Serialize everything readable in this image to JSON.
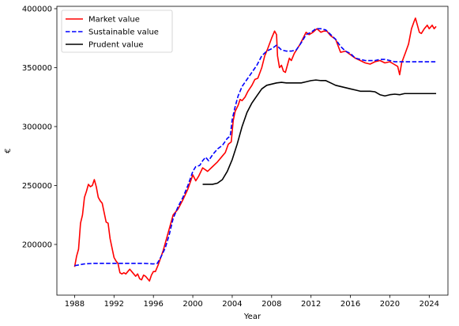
{
  "chart_data": {
    "type": "line",
    "title": "",
    "xlabel": "Year",
    "ylabel": "€",
    "xlim": [
      1986.2,
      2025.9
    ],
    "ylim": [
      157000,
      402000
    ],
    "xticks": [
      1988,
      1992,
      1996,
      2000,
      2004,
      2008,
      2012,
      2016,
      2020,
      2024
    ],
    "yticks": [
      200000,
      250000,
      300000,
      350000,
      400000
    ],
    "grid": false,
    "legend_position": "top-left",
    "series": [
      {
        "name": "Market value",
        "color": "#ff0000",
        "dash": "solid",
        "points": [
          [
            1988.0,
            181000
          ],
          [
            1988.2,
            190000
          ],
          [
            1988.4,
            196000
          ],
          [
            1988.6,
            218000
          ],
          [
            1988.8,
            225000
          ],
          [
            1989.0,
            240000
          ],
          [
            1989.2,
            245000
          ],
          [
            1989.4,
            251000
          ],
          [
            1989.6,
            249000
          ],
          [
            1989.8,
            250000
          ],
          [
            1990.0,
            255000
          ],
          [
            1990.2,
            249000
          ],
          [
            1990.4,
            240000
          ],
          [
            1990.6,
            237000
          ],
          [
            1990.8,
            235000
          ],
          [
            1991.0,
            227000
          ],
          [
            1991.2,
            219000
          ],
          [
            1991.4,
            218000
          ],
          [
            1991.6,
            205000
          ],
          [
            1991.8,
            197000
          ],
          [
            1992.0,
            189000
          ],
          [
            1992.2,
            186000
          ],
          [
            1992.4,
            184000
          ],
          [
            1992.6,
            176000
          ],
          [
            1992.8,
            175000
          ],
          [
            1993.0,
            176000
          ],
          [
            1993.2,
            175000
          ],
          [
            1993.4,
            177000
          ],
          [
            1993.6,
            179000
          ],
          [
            1993.8,
            177000
          ],
          [
            1994.0,
            175000
          ],
          [
            1994.2,
            173000
          ],
          [
            1994.4,
            175000
          ],
          [
            1994.6,
            171000
          ],
          [
            1994.8,
            170000
          ],
          [
            1995.0,
            174000
          ],
          [
            1995.2,
            173000
          ],
          [
            1995.4,
            171000
          ],
          [
            1995.6,
            169000
          ],
          [
            1995.8,
            174000
          ],
          [
            1996.0,
            177000
          ],
          [
            1996.2,
            177000
          ],
          [
            1996.5,
            183000
          ],
          [
            1997.0,
            195000
          ],
          [
            1997.5,
            210000
          ],
          [
            1998.0,
            225000
          ],
          [
            1998.5,
            230000
          ],
          [
            1999.0,
            238000
          ],
          [
            1999.5,
            247000
          ],
          [
            2000.0,
            259000
          ],
          [
            2000.3,
            254000
          ],
          [
            2000.6,
            258000
          ],
          [
            2001.0,
            265000
          ],
          [
            2001.5,
            262000
          ],
          [
            2002.0,
            266000
          ],
          [
            2002.5,
            270000
          ],
          [
            2003.0,
            275000
          ],
          [
            2003.3,
            278000
          ],
          [
            2003.6,
            285000
          ],
          [
            2003.9,
            287000
          ],
          [
            2004.1,
            305000
          ],
          [
            2004.3,
            313000
          ],
          [
            2004.6,
            318000
          ],
          [
            2004.8,
            323000
          ],
          [
            2005.0,
            322000
          ],
          [
            2005.3,
            325000
          ],
          [
            2005.6,
            330000
          ],
          [
            2006.0,
            335000
          ],
          [
            2006.3,
            340000
          ],
          [
            2006.6,
            341000
          ],
          [
            2007.0,
            350000
          ],
          [
            2007.3,
            360000
          ],
          [
            2007.6,
            366000
          ],
          [
            2008.0,
            375000
          ],
          [
            2008.3,
            381000
          ],
          [
            2008.5,
            378000
          ],
          [
            2008.6,
            360000
          ],
          [
            2008.8,
            350000
          ],
          [
            2009.0,
            352000
          ],
          [
            2009.2,
            347000
          ],
          [
            2009.4,
            346000
          ],
          [
            2009.6,
            352000
          ],
          [
            2009.8,
            358000
          ],
          [
            2010.0,
            356000
          ],
          [
            2010.3,
            362000
          ],
          [
            2010.6,
            366000
          ],
          [
            2010.9,
            370000
          ],
          [
            2011.2,
            375000
          ],
          [
            2011.5,
            380000
          ],
          [
            2011.8,
            378000
          ],
          [
            2012.2,
            380000
          ],
          [
            2012.6,
            383000
          ],
          [
            2013.0,
            380000
          ],
          [
            2013.3,
            381000
          ],
          [
            2013.6,
            381000
          ],
          [
            2014.0,
            377000
          ],
          [
            2014.5,
            374000
          ],
          [
            2015.0,
            363000
          ],
          [
            2015.5,
            364000
          ],
          [
            2016.0,
            361000
          ],
          [
            2016.5,
            358000
          ],
          [
            2017.0,
            356000
          ],
          [
            2017.5,
            354000
          ],
          [
            2018.0,
            353000
          ],
          [
            2018.5,
            355000
          ],
          [
            2019.0,
            356000
          ],
          [
            2019.5,
            354000
          ],
          [
            2020.0,
            355000
          ],
          [
            2020.4,
            353000
          ],
          [
            2020.8,
            351000
          ],
          [
            2021.0,
            344000
          ],
          [
            2021.2,
            354000
          ],
          [
            2021.6,
            363000
          ],
          [
            2021.9,
            370000
          ],
          [
            2022.2,
            383000
          ],
          [
            2022.5,
            390000
          ],
          [
            2022.6,
            392000
          ],
          [
            2022.8,
            386000
          ],
          [
            2023.0,
            380000
          ],
          [
            2023.2,
            379000
          ],
          [
            2023.5,
            383000
          ],
          [
            2023.8,
            386000
          ],
          [
            2024.0,
            383000
          ],
          [
            2024.3,
            386000
          ],
          [
            2024.5,
            383000
          ],
          [
            2024.7,
            385000
          ]
        ]
      },
      {
        "name": "Sustainable value",
        "color": "#0000ff",
        "dash": "dashed",
        "points": [
          [
            1988.0,
            182000
          ],
          [
            1989.0,
            183500
          ],
          [
            1990.0,
            184000
          ],
          [
            1991.0,
            184000
          ],
          [
            1992.0,
            184000
          ],
          [
            1993.0,
            184000
          ],
          [
            1994.0,
            184000
          ],
          [
            1995.0,
            184000
          ],
          [
            1996.0,
            183500
          ],
          [
            1996.4,
            184000
          ],
          [
            1996.8,
            190000
          ],
          [
            1997.2,
            197000
          ],
          [
            1997.6,
            208000
          ],
          [
            1998.0,
            222000
          ],
          [
            1998.5,
            232000
          ],
          [
            1999.0,
            240000
          ],
          [
            1999.5,
            250000
          ],
          [
            2000.0,
            262000
          ],
          [
            2000.3,
            266000
          ],
          [
            2000.7,
            267000
          ],
          [
            2001.0,
            271000
          ],
          [
            2001.3,
            274000
          ],
          [
            2001.6,
            271000
          ],
          [
            2002.0,
            276000
          ],
          [
            2002.5,
            281000
          ],
          [
            2003.0,
            284000
          ],
          [
            2003.5,
            290000
          ],
          [
            2003.8,
            292000
          ],
          [
            2004.0,
            306000
          ],
          [
            2004.3,
            317000
          ],
          [
            2004.6,
            326000
          ],
          [
            2005.0,
            334000
          ],
          [
            2005.5,
            340000
          ],
          [
            2006.0,
            346000
          ],
          [
            2006.5,
            352000
          ],
          [
            2007.0,
            360000
          ],
          [
            2007.5,
            364000
          ],
          [
            2008.0,
            366000
          ],
          [
            2008.5,
            369000
          ],
          [
            2009.0,
            365000
          ],
          [
            2009.5,
            364000
          ],
          [
            2010.0,
            364000
          ],
          [
            2010.5,
            365000
          ],
          [
            2011.0,
            371000
          ],
          [
            2011.5,
            378000
          ],
          [
            2012.0,
            380000
          ],
          [
            2012.5,
            383000
          ],
          [
            2013.0,
            383000
          ],
          [
            2013.5,
            382000
          ],
          [
            2014.0,
            378000
          ],
          [
            2014.5,
            374000
          ],
          [
            2015.0,
            368000
          ],
          [
            2015.5,
            364000
          ],
          [
            2016.0,
            362000
          ],
          [
            2016.5,
            358000
          ],
          [
            2017.0,
            357000
          ],
          [
            2017.5,
            356000
          ],
          [
            2018.0,
            356000
          ],
          [
            2018.5,
            356000
          ],
          [
            2019.0,
            357000
          ],
          [
            2019.5,
            357000
          ],
          [
            2020.0,
            356000
          ],
          [
            2020.5,
            355000
          ],
          [
            2021.0,
            355000
          ],
          [
            2022.0,
            355000
          ],
          [
            2023.0,
            355000
          ],
          [
            2024.0,
            355000
          ],
          [
            2024.7,
            355000
          ]
        ]
      },
      {
        "name": "Prudent value",
        "color": "#000000",
        "dash": "solid",
        "points": [
          [
            2001.0,
            251000
          ],
          [
            2001.5,
            251000
          ],
          [
            2002.0,
            251000
          ],
          [
            2002.5,
            252000
          ],
          [
            2003.0,
            255000
          ],
          [
            2003.5,
            262000
          ],
          [
            2004.0,
            272000
          ],
          [
            2004.5,
            285000
          ],
          [
            2005.0,
            300000
          ],
          [
            2005.5,
            312000
          ],
          [
            2006.0,
            320000
          ],
          [
            2006.5,
            326000
          ],
          [
            2007.0,
            332000
          ],
          [
            2007.5,
            335000
          ],
          [
            2008.0,
            336000
          ],
          [
            2008.5,
            337000
          ],
          [
            2009.0,
            337500
          ],
          [
            2009.5,
            337000
          ],
          [
            2010.0,
            337000
          ],
          [
            2010.5,
            337000
          ],
          [
            2011.0,
            337000
          ],
          [
            2011.5,
            338000
          ],
          [
            2012.0,
            339000
          ],
          [
            2012.5,
            339500
          ],
          [
            2013.0,
            339000
          ],
          [
            2013.5,
            339000
          ],
          [
            2014.0,
            337000
          ],
          [
            2014.5,
            335000
          ],
          [
            2015.0,
            334000
          ],
          [
            2015.5,
            333000
          ],
          [
            2016.0,
            332000
          ],
          [
            2016.5,
            331000
          ],
          [
            2017.0,
            330000
          ],
          [
            2017.5,
            330000
          ],
          [
            2018.0,
            330000
          ],
          [
            2018.5,
            329500
          ],
          [
            2019.0,
            327000
          ],
          [
            2019.5,
            326000
          ],
          [
            2020.0,
            327000
          ],
          [
            2020.5,
            327500
          ],
          [
            2021.0,
            327000
          ],
          [
            2021.5,
            328000
          ],
          [
            2022.0,
            328000
          ],
          [
            2023.0,
            328000
          ],
          [
            2024.0,
            328000
          ],
          [
            2024.7,
            328000
          ]
        ]
      }
    ]
  }
}
